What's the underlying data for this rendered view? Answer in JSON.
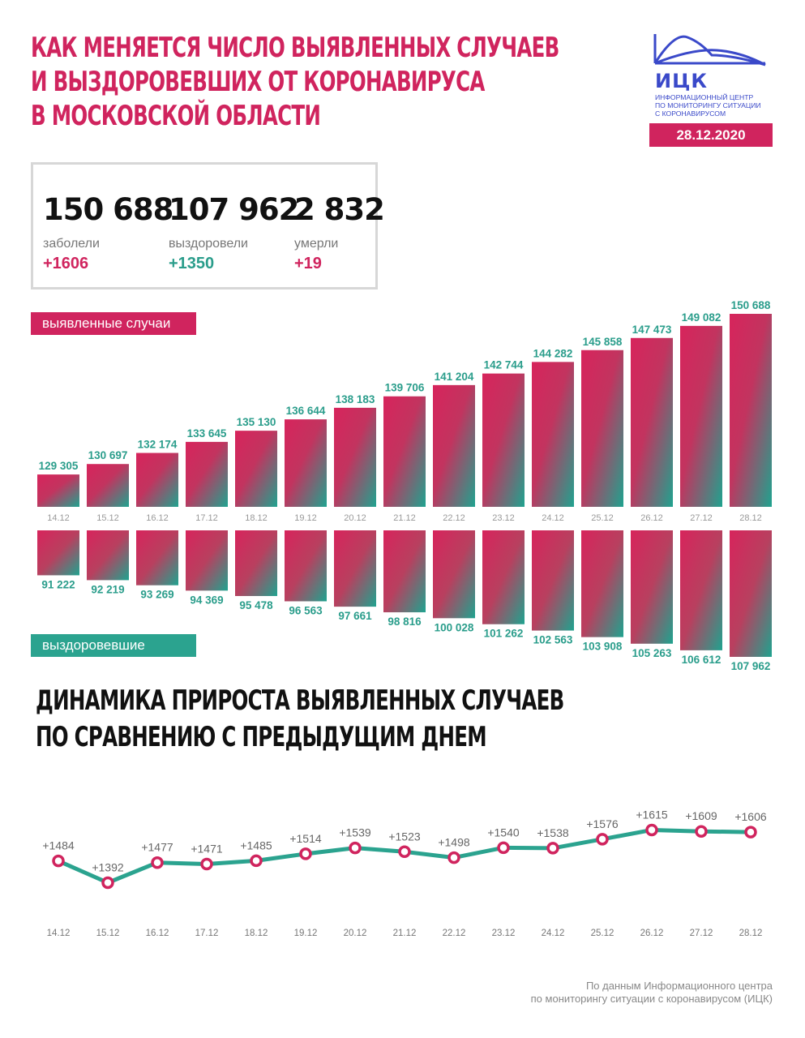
{
  "header": {
    "title_lines": [
      "Как меняется число выявленных случаев",
      "и выздоровевших от коронавируса",
      "в Московской области"
    ],
    "logo_name": "ИЦК",
    "logo_sub_lines": [
      "Информационный центр",
      "по мониторингу ситуации",
      "с коронавирусом"
    ],
    "date": "28.12.2020",
    "colors": {
      "accent": "#d0245e",
      "teal": "#2ba38f",
      "logo": "#3a49c9"
    }
  },
  "totals": [
    {
      "value": "150 688",
      "label": "заболели",
      "delta": "+1606",
      "color": "pink"
    },
    {
      "value": "107 962",
      "label": "выздоровели",
      "delta": "+1350",
      "color": "teal"
    },
    {
      "value": "2 832",
      "label": "умерли",
      "delta": "+19",
      "color": "pink"
    }
  ],
  "tags": {
    "cases": "выявленные случаи",
    "recovered": "выздоровевшие"
  },
  "section2": {
    "title_lines": [
      "Динамика прироста выявленных случаев",
      "по сравнению с предыдущим днем"
    ]
  },
  "source_lines": [
    "По данным Информационного центра",
    "по мониторингу ситуации с коронавирусом (ИЦК)"
  ],
  "chart_data": [
    {
      "type": "bar",
      "categories": [
        "14.12",
        "15.12",
        "16.12",
        "17.12",
        "18.12",
        "19.12",
        "20.12",
        "21.12",
        "22.12",
        "23.12",
        "24.12",
        "25.12",
        "26.12",
        "27.12",
        "28.12"
      ],
      "series": [
        {
          "name": "выявленные случаи",
          "values": [
            129305,
            130697,
            132174,
            133645,
            135130,
            136644,
            138183,
            139706,
            141204,
            142744,
            144282,
            145858,
            147473,
            149082,
            150688
          ],
          "labels": [
            "129 305",
            "130 697",
            "132 174",
            "133 645",
            "135 130",
            "136 644",
            "138 183",
            "139 706",
            "141 204",
            "142 744",
            "144 282",
            "145 858",
            "147 473",
            "149 082",
            "150 688"
          ]
        },
        {
          "name": "выздоровевшие",
          "values": [
            91222,
            92219,
            93269,
            94369,
            95478,
            96563,
            97661,
            98816,
            100028,
            101262,
            102563,
            103908,
            105263,
            106612,
            107962
          ],
          "labels": [
            "91 222",
            "92 219",
            "93 269",
            "94 369",
            "95 478",
            "96 563",
            "97 661",
            "98 816",
            "100 028",
            "101 262",
            "102 563",
            "103 908",
            "105 263",
            "106 612",
            "107 962"
          ]
        }
      ]
    },
    {
      "type": "line",
      "categories": [
        "14.12",
        "15.12",
        "16.12",
        "17.12",
        "18.12",
        "19.12",
        "20.12",
        "21.12",
        "22.12",
        "23.12",
        "24.12",
        "25.12",
        "26.12",
        "27.12",
        "28.12"
      ],
      "series": [
        {
          "values": [
            1484,
            1392,
            1477,
            1471,
            1485,
            1514,
            1539,
            1523,
            1498,
            1540,
            1538,
            1576,
            1615,
            1609,
            1606
          ],
          "labels": [
            "+1484",
            "+1392",
            "+1477",
            "+1471",
            "+1485",
            "+1514",
            "+1539",
            "+1523",
            "+1498",
            "+1540",
            "+1538",
            "+1576",
            "+1615",
            "+1609",
            "+1606"
          ]
        }
      ],
      "colors": {
        "line": "#2ba38f",
        "marker": "#d0245e"
      }
    }
  ]
}
